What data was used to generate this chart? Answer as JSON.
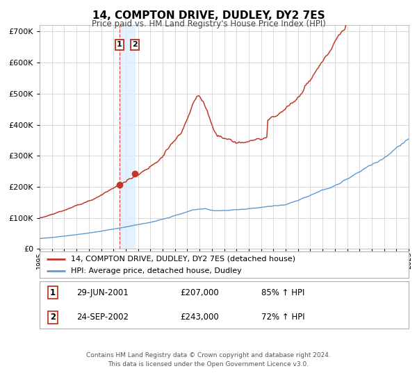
{
  "title": "14, COMPTON DRIVE, DUDLEY, DY2 7ES",
  "subtitle": "Price paid vs. HM Land Registry's House Price Index (HPI)",
  "legend_line1": "14, COMPTON DRIVE, DUDLEY, DY2 7ES (detached house)",
  "legend_line2": "HPI: Average price, detached house, Dudley",
  "footer1": "Contains HM Land Registry data © Crown copyright and database right 2024.",
  "footer2": "This data is licensed under the Open Government Licence v3.0.",
  "sale1_label": "1",
  "sale1_date": "29-JUN-2001",
  "sale1_price": "£207,000",
  "sale1_hpi": "85% ↑ HPI",
  "sale2_label": "2",
  "sale2_date": "24-SEP-2002",
  "sale2_price": "£243,000",
  "sale2_hpi": "72% ↑ HPI",
  "sale1_year": 2001.49,
  "sale1_value": 207000,
  "sale2_year": 2002.73,
  "sale2_value": 243000,
  "red_line_color": "#c0392b",
  "blue_line_color": "#5b9bd5",
  "vline_color": "#e74c3c",
  "shade_color": "#dceeff",
  "background_color": "#ffffff",
  "grid_color": "#cccccc",
  "box_color": "#c0392b",
  "ylim_max": 720000,
  "xlim_min": 1995,
  "xlim_max": 2025
}
